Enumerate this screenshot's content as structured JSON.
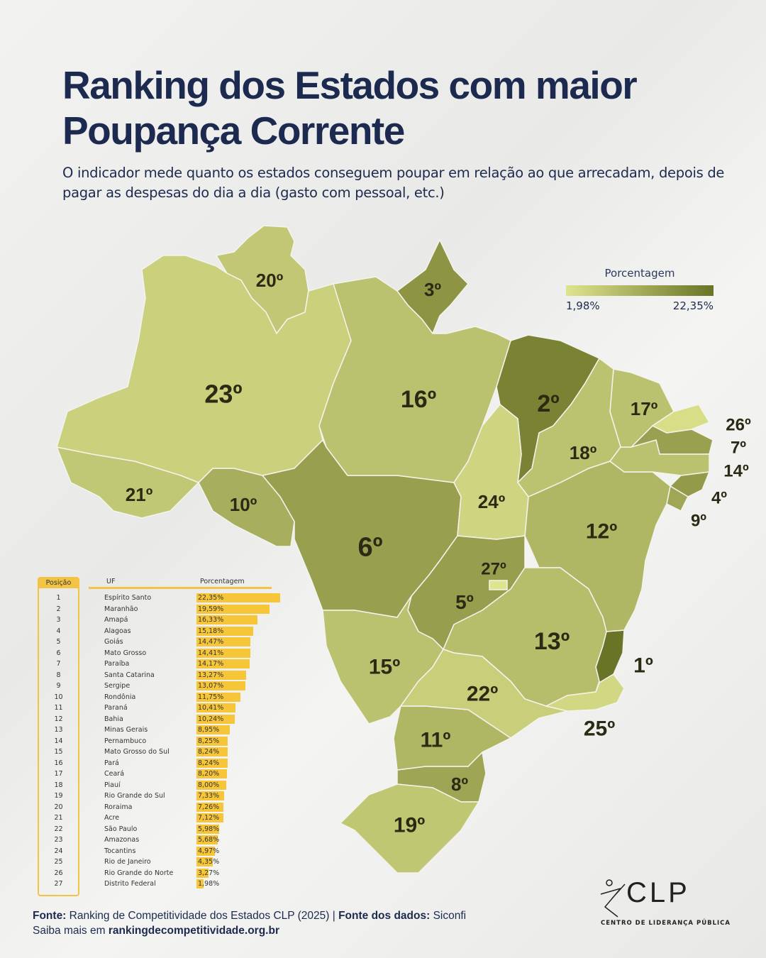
{
  "header": {
    "title": "Ranking dos Estados com maior Poupança Corrente",
    "subtitle": "O indicador mede quanto os estados conseguem poupar em relação ao que arrecadam, depois de pagar as despesas do dia a dia (gasto com pessoal, etc.)"
  },
  "legend": {
    "title": "Porcentagem",
    "min_label": "1,98%",
    "max_label": "22,35%",
    "min_value": 1.98,
    "max_value": 22.35,
    "color_low": "#dfe48f",
    "color_high": "#6a7426"
  },
  "table": {
    "headers": {
      "position": "Posição",
      "uf": "UF",
      "percent": "Porcentagem"
    },
    "bar_color": "#f6c638"
  },
  "chart_data": {
    "type": "choropleth",
    "rows": [
      {
        "pos": "1",
        "rank_label": "1º",
        "uf": "Espírito Santo",
        "value": 22.35,
        "label": "22,35%"
      },
      {
        "pos": "2",
        "rank_label": "2º",
        "uf": "Maranhão",
        "value": 19.59,
        "label": "19,59%"
      },
      {
        "pos": "3",
        "rank_label": "3º",
        "uf": "Amapá",
        "value": 16.33,
        "label": "16,33%"
      },
      {
        "pos": "4",
        "rank_label": "4º",
        "uf": "Alagoas",
        "value": 15.18,
        "label": "15,18%"
      },
      {
        "pos": "5",
        "rank_label": "5º",
        "uf": "Goiás",
        "value": 14.47,
        "label": "14,47%"
      },
      {
        "pos": "6",
        "rank_label": "6º",
        "uf": "Mato Grosso",
        "value": 14.41,
        "label": "14,41%"
      },
      {
        "pos": "7",
        "rank_label": "7º",
        "uf": "Paraíba",
        "value": 14.17,
        "label": "14,17%"
      },
      {
        "pos": "8",
        "rank_label": "8º",
        "uf": "Santa Catarina",
        "value": 13.27,
        "label": "13,27%"
      },
      {
        "pos": "9",
        "rank_label": "9º",
        "uf": "Sergipe",
        "value": 13.07,
        "label": "13,07%"
      },
      {
        "pos": "10",
        "rank_label": "10º",
        "uf": "Rondônia",
        "value": 11.75,
        "label": "11,75%"
      },
      {
        "pos": "11",
        "rank_label": "11º",
        "uf": "Paraná",
        "value": 10.41,
        "label": "10,41%"
      },
      {
        "pos": "12",
        "rank_label": "12º",
        "uf": "Bahia",
        "value": 10.24,
        "label": "10,24%"
      },
      {
        "pos": "13",
        "rank_label": "13º",
        "uf": "Minas Gerais",
        "value": 8.95,
        "label": "8,95%"
      },
      {
        "pos": "14",
        "rank_label": "14º",
        "uf": "Pernambuco",
        "value": 8.25,
        "label": "8,25%"
      },
      {
        "pos": "15",
        "rank_label": "15º",
        "uf": "Mato Grosso do Sul",
        "value": 8.24,
        "label": "8,24%"
      },
      {
        "pos": "16",
        "rank_label": "16º",
        "uf": "Pará",
        "value": 8.24,
        "label": "8,24%"
      },
      {
        "pos": "17",
        "rank_label": "17º",
        "uf": "Ceará",
        "value": 8.2,
        "label": "8,20%"
      },
      {
        "pos": "18",
        "rank_label": "18º",
        "uf": "Piauí",
        "value": 8.0,
        "label": "8,00%"
      },
      {
        "pos": "19",
        "rank_label": "19º",
        "uf": "Rio Grande do Sul",
        "value": 7.33,
        "label": "7,33%"
      },
      {
        "pos": "20",
        "rank_label": "20º",
        "uf": "Roraima",
        "value": 7.26,
        "label": "7,26%"
      },
      {
        "pos": "21",
        "rank_label": "21º",
        "uf": "Acre",
        "value": 7.12,
        "label": "7,12%"
      },
      {
        "pos": "22",
        "rank_label": "22º",
        "uf": "São Paulo",
        "value": 5.98,
        "label": "5,98%"
      },
      {
        "pos": "23",
        "rank_label": "23º",
        "uf": "Amazonas",
        "value": 5.68,
        "label": "5,68%"
      },
      {
        "pos": "24",
        "rank_label": "24º",
        "uf": "Tocantins",
        "value": 4.97,
        "label": "4,97%"
      },
      {
        "pos": "25",
        "rank_label": "25º",
        "uf": "Rio de Janeiro",
        "value": 4.35,
        "label": "4,35%"
      },
      {
        "pos": "26",
        "rank_label": "26º",
        "uf": "Rio Grande do Norte",
        "value": 3.27,
        "label": "3,27%"
      },
      {
        "pos": "27",
        "rank_label": "27º",
        "uf": "Distrito Federal",
        "value": 1.98,
        "label": "1,98%"
      }
    ]
  },
  "footer": {
    "source_label": "Fonte:",
    "source_text": "Ranking de Competitividade dos Estados CLP (2025) |",
    "data_source_label": "Fonte dos dados:",
    "data_source_text": "Siconfi",
    "more_text": "Saiba mais em",
    "more_link": "rankingdecompetitividade.org.br"
  },
  "logo": {
    "name": "CLP",
    "subtitle": "CENTRO DE LIDERANÇA PÚBLICA"
  }
}
